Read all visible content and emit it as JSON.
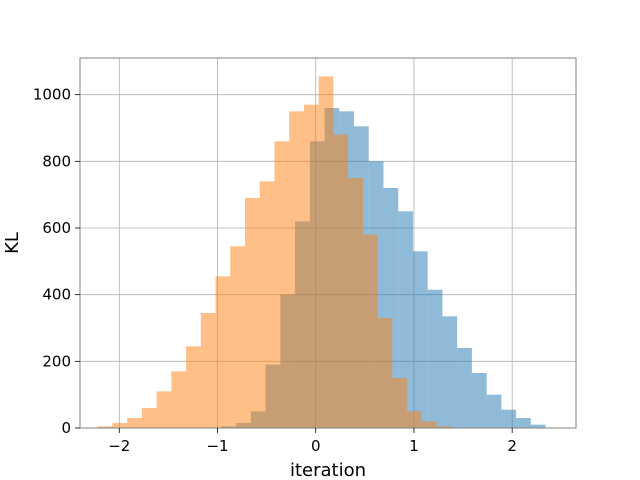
{
  "chart_data": {
    "type": "bar",
    "title": "",
    "xlabel": "iteration",
    "ylabel": "KL",
    "xlim": [
      -2.4,
      2.65
    ],
    "ylim": [
      0,
      1110
    ],
    "xticks": [
      -2,
      -1,
      0,
      1,
      2
    ],
    "xtick_labels": [
      "−2",
      "−1",
      "0",
      "1",
      "2"
    ],
    "yticks": [
      0,
      200,
      400,
      600,
      800,
      1000
    ],
    "ytick_labels": [
      "0",
      "200",
      "400",
      "600",
      "800",
      "1000"
    ],
    "grid": true,
    "series": [
      {
        "color": "#1f77b4",
        "opacity": 0.5,
        "bin_edges": [
          -0.96,
          -0.81,
          -0.66,
          -0.51,
          -0.36,
          -0.21,
          -0.06,
          0.09,
          0.24,
          0.39,
          0.54,
          0.69,
          0.84,
          0.99,
          1.14,
          1.29,
          1.44,
          1.59,
          1.74,
          1.89,
          2.04,
          2.19,
          2.34
        ],
        "counts": [
          5,
          15,
          50,
          190,
          400,
          620,
          860,
          960,
          950,
          905,
          800,
          720,
          650,
          530,
          415,
          335,
          240,
          165,
          100,
          55,
          30,
          10
        ]
      },
      {
        "color": "#ff7f0e",
        "opacity": 0.5,
        "bin_edges": [
          -2.22,
          -2.07,
          -1.92,
          -1.77,
          -1.62,
          -1.47,
          -1.32,
          -1.17,
          -1.02,
          -0.87,
          -0.72,
          -0.57,
          -0.42,
          -0.27,
          -0.12,
          0.03,
          0.18,
          0.33,
          0.48,
          0.63,
          0.78,
          0.93,
          1.08,
          1.23,
          1.38
        ],
        "counts": [
          5,
          15,
          30,
          60,
          110,
          170,
          245,
          345,
          455,
          545,
          690,
          740,
          860,
          950,
          970,
          1055,
          880,
          750,
          580,
          330,
          150,
          50,
          20,
          5
        ]
      }
    ]
  }
}
